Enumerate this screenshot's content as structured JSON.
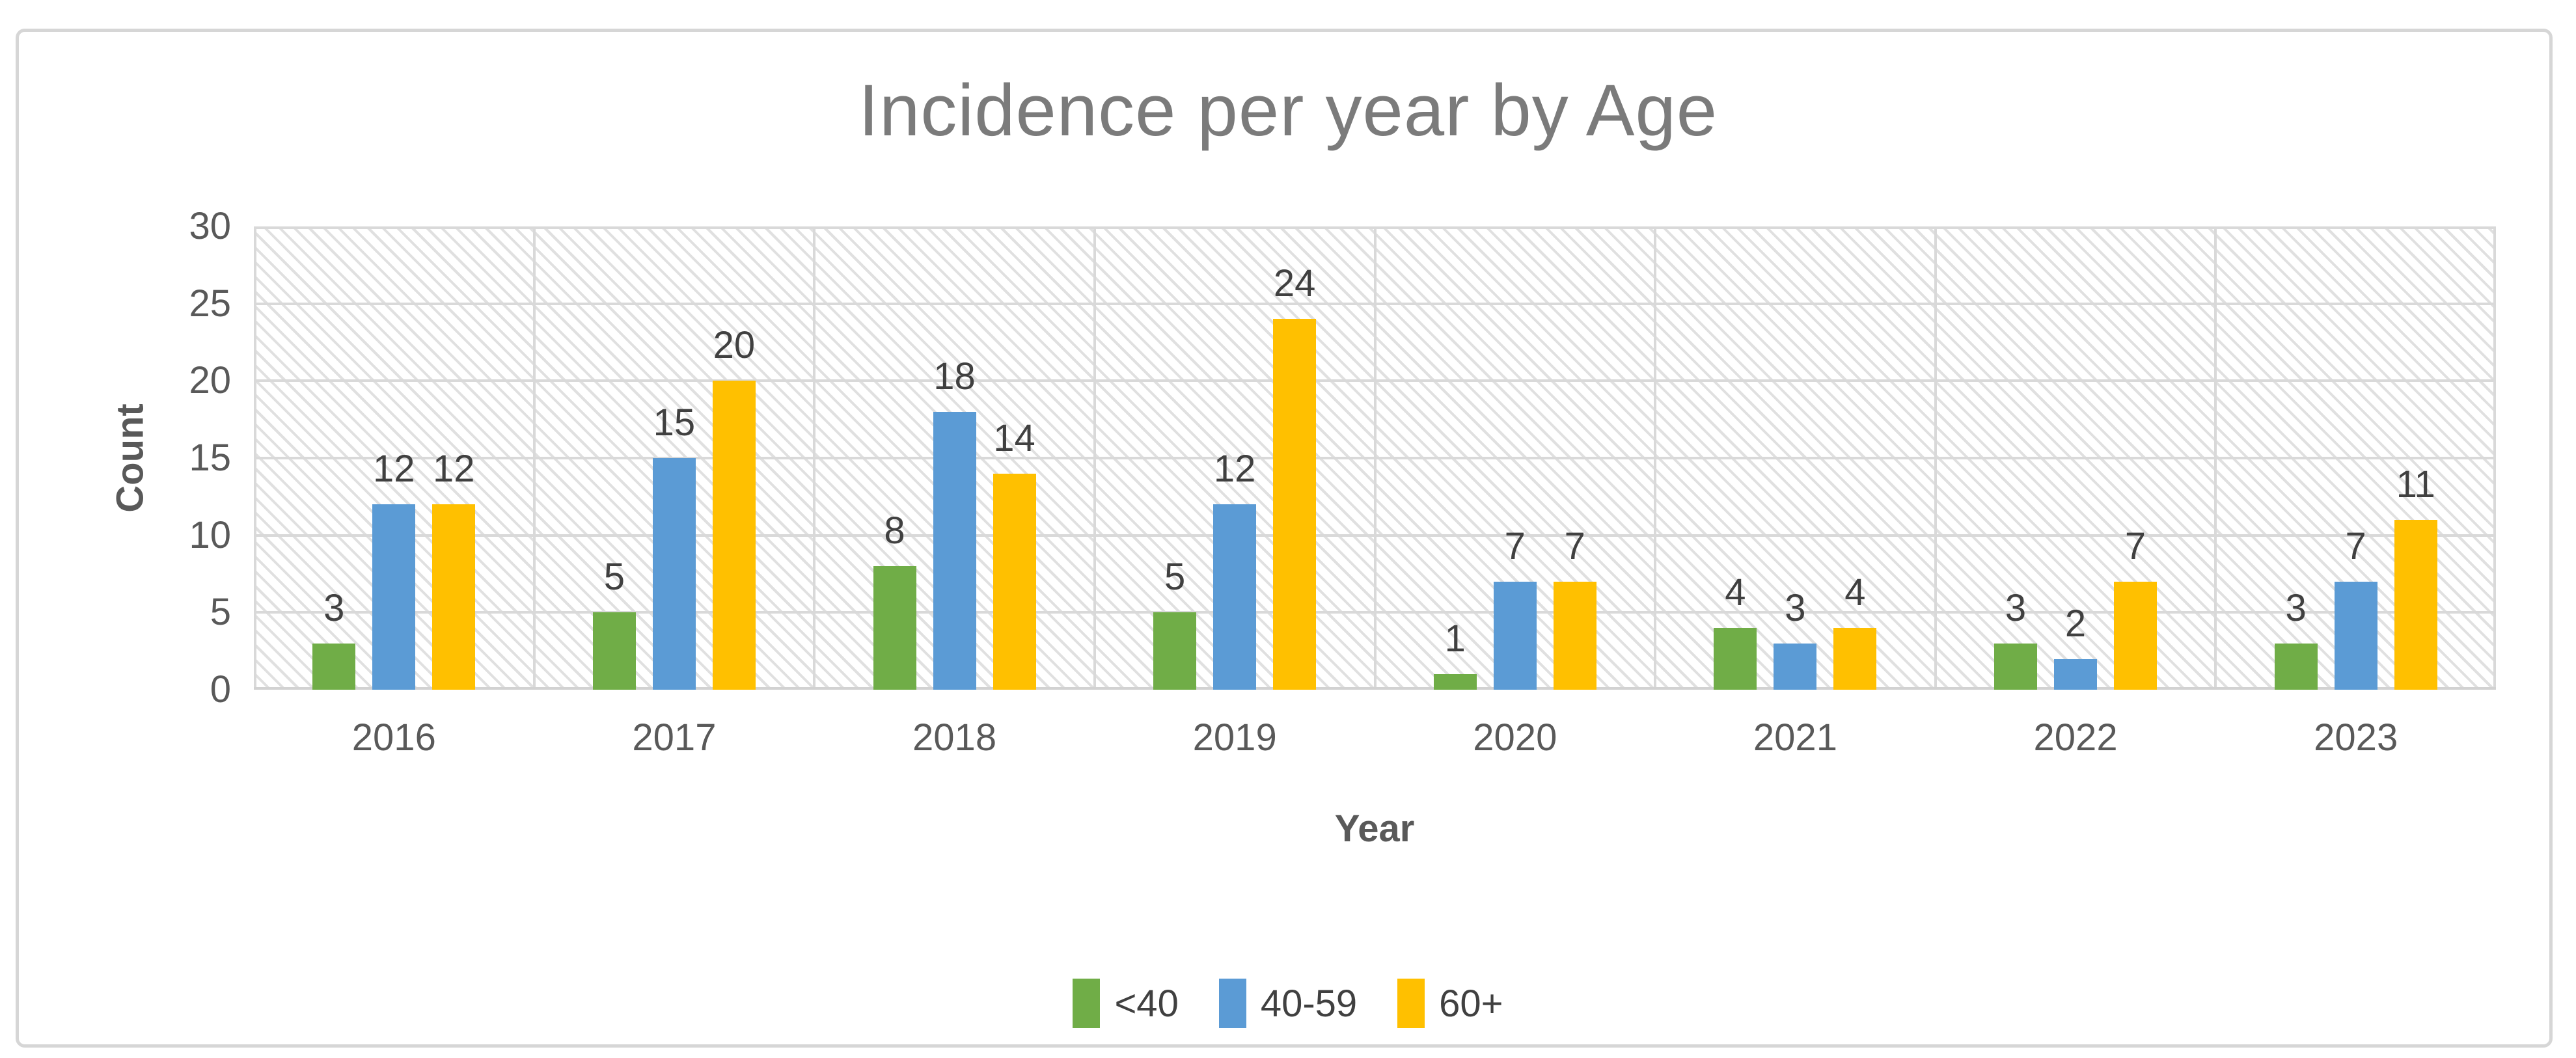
{
  "chart_data": {
    "type": "bar",
    "title": "Incidence per year by Age",
    "xlabel": "Year",
    "ylabel": "Count",
    "categories": [
      "2016",
      "2017",
      "2018",
      "2019",
      "2020",
      "2021",
      "2022",
      "2023"
    ],
    "series": [
      {
        "name": "<40",
        "color": "#70AD47",
        "values": [
          3,
          5,
          8,
          5,
          1,
          4,
          3,
          3
        ]
      },
      {
        "name": "40-59",
        "color": "#5B9BD5",
        "values": [
          12,
          15,
          18,
          12,
          7,
          3,
          2,
          7
        ]
      },
      {
        "name": "60+",
        "color": "#FFC000",
        "values": [
          12,
          20,
          14,
          24,
          7,
          4,
          7,
          11
        ]
      }
    ],
    "ylim": [
      0,
      30
    ],
    "y_ticks": [
      0,
      5,
      10,
      15,
      20,
      25,
      30
    ],
    "grid": true,
    "data_labels": true,
    "legend_position": "bottom",
    "plot_background": "light-downward-diagonal-hatch"
  },
  "colors": {
    "gridline": "#D9D9D9",
    "plot_border": "#D9D9D9",
    "frame_border": "#D6D6D6",
    "title_text": "#7B7B7B",
    "axis_text": "#595959",
    "data_label_text": "#404040",
    "legend_text": "#404040",
    "background": "#FFFFFF"
  }
}
